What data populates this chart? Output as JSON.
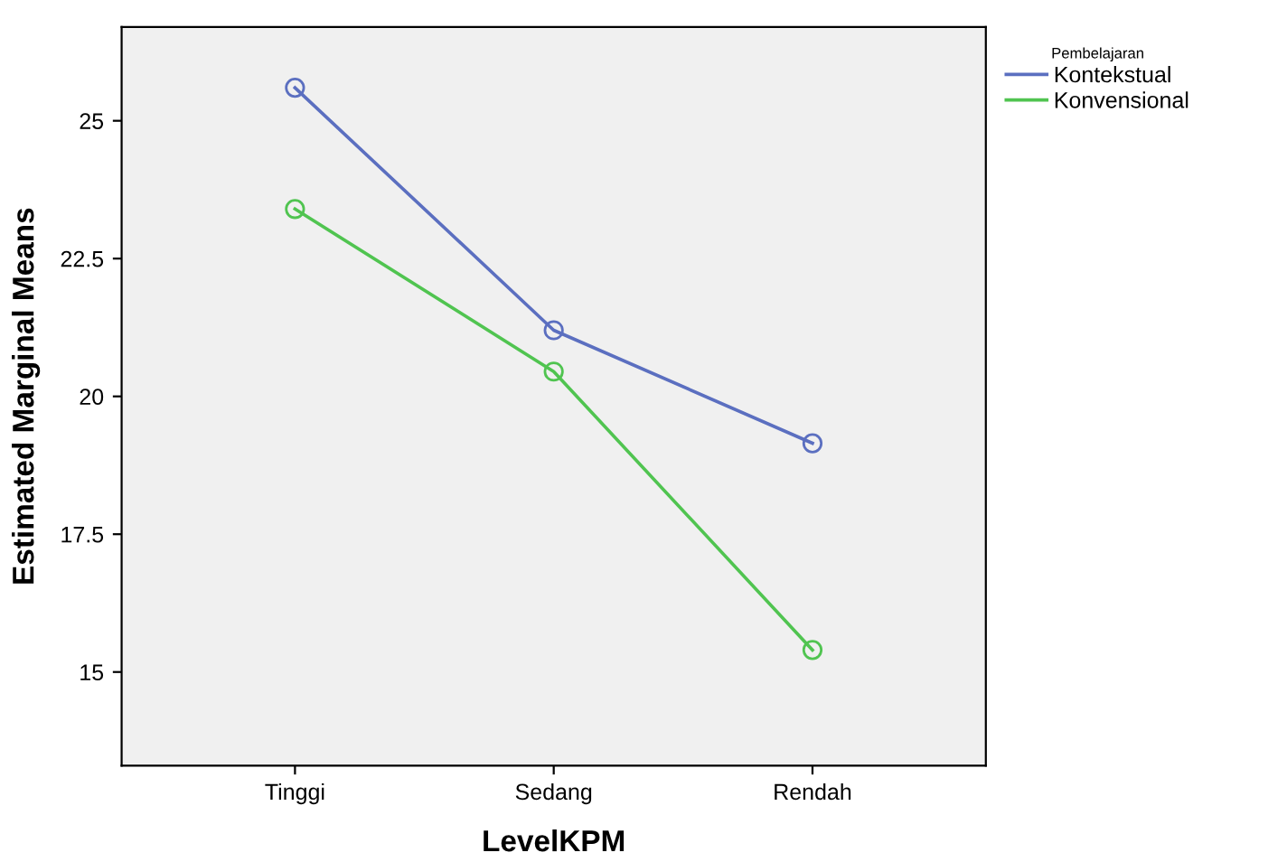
{
  "chart_data": {
    "type": "line",
    "xlabel": "LevelKPM",
    "ylabel": "Estimated Marginal Means",
    "legend_title": "Pembelajaran",
    "categories": [
      "Tinggi",
      "Sedang",
      "Rendah"
    ],
    "series": [
      {
        "name": "Kontekstual",
        "color": "#5b6fc0",
        "values": [
          25.6,
          21.2,
          19.15
        ]
      },
      {
        "name": "Konvensional",
        "color": "#50c450",
        "values": [
          23.4,
          20.45,
          15.4
        ]
      }
    ],
    "ylim": [
      13.3,
      26.7
    ],
    "yticks": [
      15,
      17.5,
      20,
      22.5,
      25
    ],
    "grid": false,
    "legend": "top right",
    "marker": "circle",
    "line_style": "solid"
  }
}
